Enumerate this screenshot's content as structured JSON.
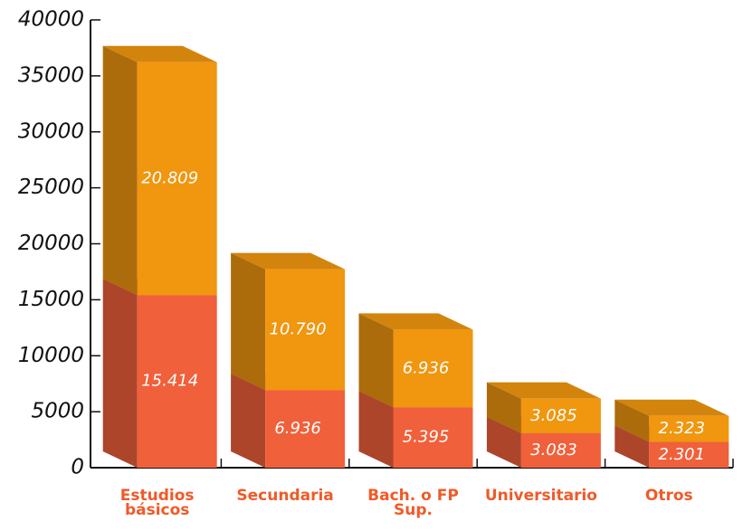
{
  "chart_data": {
    "type": "bar3d_stacked",
    "categories": [
      "Estudios básicos",
      "Secundaria",
      "Bach. o FP Sup.",
      "Universitario",
      "Otros"
    ],
    "series": [
      {
        "color": "#f0603a",
        "values": [
          15414,
          6936,
          5395,
          3083,
          2301
        ],
        "value_labels": [
          "15.414",
          "6.936",
          "5.395",
          "3.083",
          "2.301"
        ]
      },
      {
        "color": "#f0960f",
        "values": [
          20809,
          10790,
          6936,
          3085,
          2323
        ],
        "value_labels": [
          "20.809",
          "10.790",
          "6.936",
          "3.085",
          "2.323"
        ]
      }
    ],
    "ylim": [
      0,
      40000
    ],
    "yticks": [
      0,
      5000,
      10000,
      15000,
      20000,
      25000,
      30000,
      35000,
      40000
    ]
  }
}
